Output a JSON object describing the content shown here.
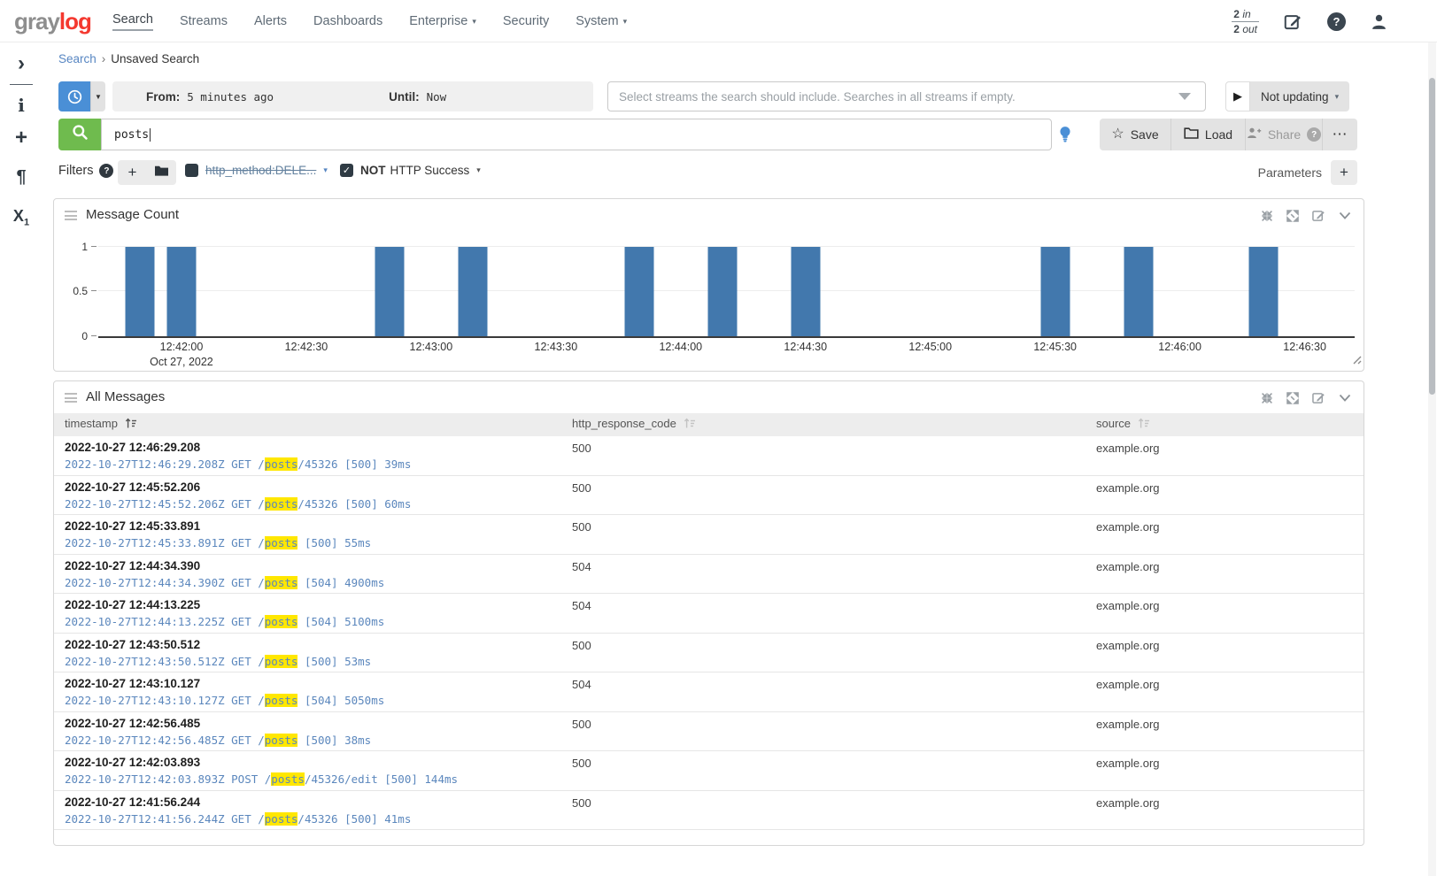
{
  "navbar": {
    "logo_gray": "gray",
    "logo_red": "log",
    "items": [
      {
        "label": "Search",
        "active": true,
        "caret": false
      },
      {
        "label": "Streams",
        "caret": false
      },
      {
        "label": "Alerts",
        "caret": false
      },
      {
        "label": "Dashboards",
        "caret": false
      },
      {
        "label": "Enterprise",
        "caret": true
      },
      {
        "label": "Security",
        "caret": false
      },
      {
        "label": "System",
        "caret": true
      }
    ],
    "throughput": {
      "in_value": "2",
      "in_unit": "in",
      "out_value": "2",
      "out_unit": "out"
    }
  },
  "sidebar": {
    "icons": [
      {
        "name": "expand-sidebar",
        "glyph": "›"
      },
      {
        "name": "info",
        "glyph": "i"
      },
      {
        "name": "create",
        "glyph": "+"
      },
      {
        "name": "formatting",
        "glyph": "¶"
      },
      {
        "name": "fields",
        "glyph": "X",
        "sub": "1"
      }
    ]
  },
  "breadcrumb": {
    "root": "Search",
    "separator": "›",
    "current": "Unsaved Search"
  },
  "timerange": {
    "from_label": "From:",
    "from_value": "5 minutes ago",
    "until_label": "Until:",
    "until_value": "Now"
  },
  "stream_select": {
    "placeholder": "Select streams the search should include. Searches in all streams if empty."
  },
  "refresh": {
    "play": "▶",
    "label": "Not updating",
    "caret": "▾"
  },
  "search": {
    "query": "posts",
    "save": "Save",
    "load": "Load",
    "share": "Share",
    "share_help": "?",
    "more": "⋯",
    "star": "☆"
  },
  "filters": {
    "label": "Filters",
    "help": "?",
    "add": "+",
    "items": [
      {
        "label": "http_method:DELE...",
        "checked": false,
        "disabled": true,
        "caret": "▾"
      },
      {
        "negation": "NOT",
        "label": "HTTP Success",
        "checked": true,
        "check_glyph": "✓",
        "caret": "▾"
      }
    ],
    "parameters_label": "Parameters",
    "parameters_add": "+"
  },
  "widgets": {
    "message_count": {
      "title": "Message Count"
    },
    "all_messages": {
      "title": "All Messages",
      "columns": [
        {
          "name": "timestamp",
          "sorted": true
        },
        {
          "name": "http_response_code",
          "sorted": false
        },
        {
          "name": "source",
          "sorted": false
        }
      ],
      "rows": [
        {
          "timestamp": "2022-10-27 12:46:29.208",
          "http_response_code": "500",
          "source": "example.org",
          "message": {
            "prefix": "2022-10-27T12:46:29.208Z GET /",
            "highlight": "posts",
            "suffix": "/45326 [500] 39ms"
          }
        },
        {
          "timestamp": "2022-10-27 12:45:52.206",
          "http_response_code": "500",
          "source": "example.org",
          "message": {
            "prefix": "2022-10-27T12:45:52.206Z GET /",
            "highlight": "posts",
            "suffix": "/45326 [500] 60ms"
          }
        },
        {
          "timestamp": "2022-10-27 12:45:33.891",
          "http_response_code": "500",
          "source": "example.org",
          "message": {
            "prefix": "2022-10-27T12:45:33.891Z GET /",
            "highlight": "posts",
            "suffix": " [500] 55ms"
          }
        },
        {
          "timestamp": "2022-10-27 12:44:34.390",
          "http_response_code": "504",
          "source": "example.org",
          "message": {
            "prefix": "2022-10-27T12:44:34.390Z GET /",
            "highlight": "posts",
            "suffix": " [504] 4900ms"
          }
        },
        {
          "timestamp": "2022-10-27 12:44:13.225",
          "http_response_code": "504",
          "source": "example.org",
          "message": {
            "prefix": "2022-10-27T12:44:13.225Z GET /",
            "highlight": "posts",
            "suffix": " [504] 5100ms"
          }
        },
        {
          "timestamp": "2022-10-27 12:43:50.512",
          "http_response_code": "500",
          "source": "example.org",
          "message": {
            "prefix": "2022-10-27T12:43:50.512Z GET /",
            "highlight": "posts",
            "suffix": " [500] 53ms"
          }
        },
        {
          "timestamp": "2022-10-27 12:43:10.127",
          "http_response_code": "504",
          "source": "example.org",
          "message": {
            "prefix": "2022-10-27T12:43:10.127Z GET /",
            "highlight": "posts",
            "suffix": " [504] 5050ms"
          }
        },
        {
          "timestamp": "2022-10-27 12:42:56.485",
          "http_response_code": "500",
          "source": "example.org",
          "message": {
            "prefix": "2022-10-27T12:42:56.485Z GET /",
            "highlight": "posts",
            "suffix": " [500] 38ms"
          }
        },
        {
          "timestamp": "2022-10-27 12:42:03.893",
          "http_response_code": "500",
          "source": "example.org",
          "message": {
            "prefix": "2022-10-27T12:42:03.893Z POST /",
            "highlight": "posts",
            "suffix": "/45326/edit [500] 144ms"
          }
        },
        {
          "timestamp": "2022-10-27 12:41:56.244",
          "http_response_code": "500",
          "source": "example.org",
          "message": {
            "prefix": "2022-10-27T12:41:56.244Z GET /",
            "highlight": "posts",
            "suffix": "/45326 [500] 41ms"
          }
        }
      ]
    }
  },
  "chart_data": {
    "type": "bar",
    "title": "Message Count",
    "x": [
      "12:41:50",
      "12:42:00",
      "12:42:50",
      "12:43:10",
      "12:43:50",
      "12:44:10",
      "12:44:30",
      "12:45:30",
      "12:45:50",
      "12:46:20"
    ],
    "values": [
      1,
      1,
      1,
      1,
      1,
      1,
      1,
      1,
      1,
      1
    ],
    "x_axis": {
      "start": "12:41:40",
      "end": "12:46:42",
      "ticks": [
        "12:42:00",
        "12:42:30",
        "12:43:00",
        "12:43:30",
        "12:44:00",
        "12:44:30",
        "12:45:00",
        "12:45:30",
        "12:46:00",
        "12:46:30"
      ],
      "date_label": "Oct 27, 2022"
    },
    "xlabel": "",
    "ylabel": "",
    "yticks": [
      0,
      0.5,
      1
    ],
    "ylim": [
      0,
      1.075
    ],
    "grid": true,
    "legend": false,
    "bar_color": "#4278ad"
  },
  "colors": {
    "accent_blue": "#4a8fd6",
    "accent_green": "#6fbb4e",
    "link_blue": "#5786c2",
    "highlight_yellow": "#ffe700",
    "bar_blue": "#4278ad",
    "logo_red": "#f4382f"
  }
}
